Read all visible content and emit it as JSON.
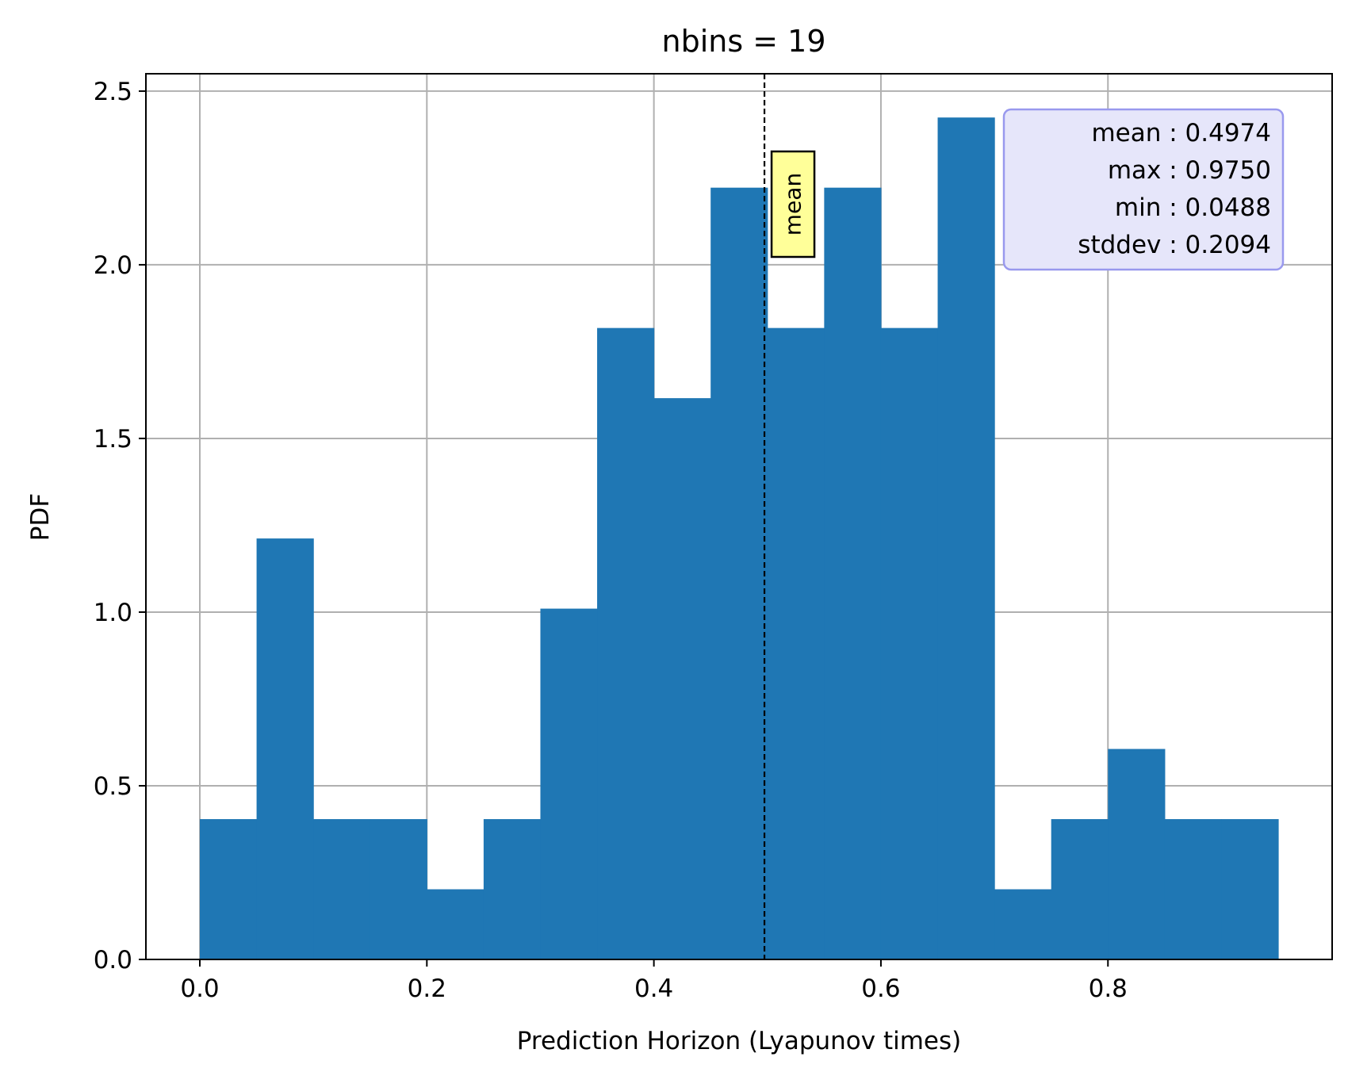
{
  "chart_data": {
    "type": "bar",
    "title": "nbins = 19",
    "xlabel": "Prediction Horizon (Lyapunov times)",
    "ylabel": "PDF",
    "xlim": [
      -0.0475,
      0.9975
    ],
    "ylim": [
      0,
      2.55
    ],
    "x_ticks": [
      "0.0",
      "0.2",
      "0.4",
      "0.6",
      "0.8"
    ],
    "x_tick_values": [
      0.0,
      0.2,
      0.4,
      0.6,
      0.8
    ],
    "y_ticks": [
      "0.0",
      "0.5",
      "1.0",
      "1.5",
      "2.0",
      "2.5"
    ],
    "y_tick_values": [
      0.0,
      0.5,
      1.0,
      1.5,
      2.0,
      2.5
    ],
    "grid": true,
    "bin_edges": [
      0.0,
      0.05,
      0.1,
      0.15,
      0.2,
      0.25,
      0.3,
      0.35,
      0.4,
      0.45,
      0.5,
      0.55,
      0.6,
      0.65,
      0.7,
      0.75,
      0.8,
      0.85,
      0.9,
      0.95
    ],
    "values": [
      0.404,
      1.212,
      0.404,
      0.404,
      0.202,
      0.404,
      1.01,
      1.818,
      1.616,
      2.222,
      1.818,
      2.222,
      1.818,
      2.424,
      0.202,
      0.404,
      0.606,
      0.404,
      0.404
    ],
    "bar_color": "#1f77b4",
    "mean_line": {
      "x": 0.4974,
      "label": "mean",
      "style": "dashed",
      "label_bg": "#ffff99"
    },
    "stats_box": {
      "lines": [
        "mean : 0.4974",
        "max : 0.9750",
        "min : 0.0488",
        "stddev : 0.2094"
      ],
      "bg_color": "#e6e6fa",
      "border_color": "#9999ee",
      "placement": "top-right"
    }
  }
}
